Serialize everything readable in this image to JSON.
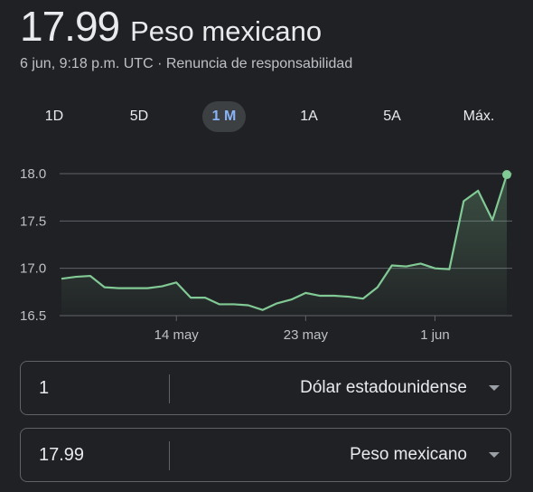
{
  "header": {
    "value": "17.99",
    "currency": "Peso mexicano"
  },
  "subtitle": {
    "timestamp": "6 jun, 9:18 p.m. UTC",
    "separator": " · ",
    "disclaimer": "Renuncia de responsabilidad"
  },
  "tabs": [
    {
      "label": "1D",
      "active": false
    },
    {
      "label": "5D",
      "active": false
    },
    {
      "label": "1 M",
      "active": true
    },
    {
      "label": "1A",
      "active": false
    },
    {
      "label": "5A",
      "active": false
    },
    {
      "label": "Máx.",
      "active": false
    }
  ],
  "colors": {
    "line": "#81c995",
    "fill_top": "#81c995",
    "grid": "#5f6368",
    "accent": "#8ab4f8"
  },
  "chart_data": {
    "type": "area",
    "ylim": [
      16.5,
      18.0
    ],
    "y_ticks": [
      "18.0",
      "17.5",
      "17.0",
      "16.5"
    ],
    "x_tick_labels": [
      "14 may",
      "23 may",
      "1 jun"
    ],
    "x_tick_index": [
      8,
      17,
      26
    ],
    "grid": true,
    "values": [
      16.89,
      16.91,
      16.92,
      16.8,
      16.79,
      16.79,
      16.79,
      16.81,
      16.85,
      16.69,
      16.69,
      16.62,
      16.62,
      16.61,
      16.56,
      16.63,
      16.67,
      16.74,
      16.71,
      16.71,
      16.7,
      16.68,
      16.8,
      17.03,
      17.02,
      17.05,
      17.0,
      16.99,
      17.71,
      17.82,
      17.51,
      17.99
    ]
  },
  "converter": [
    {
      "amount": "1",
      "currency": "Dólar estadounidense"
    },
    {
      "amount": "17.99",
      "currency": "Peso mexicano"
    }
  ]
}
